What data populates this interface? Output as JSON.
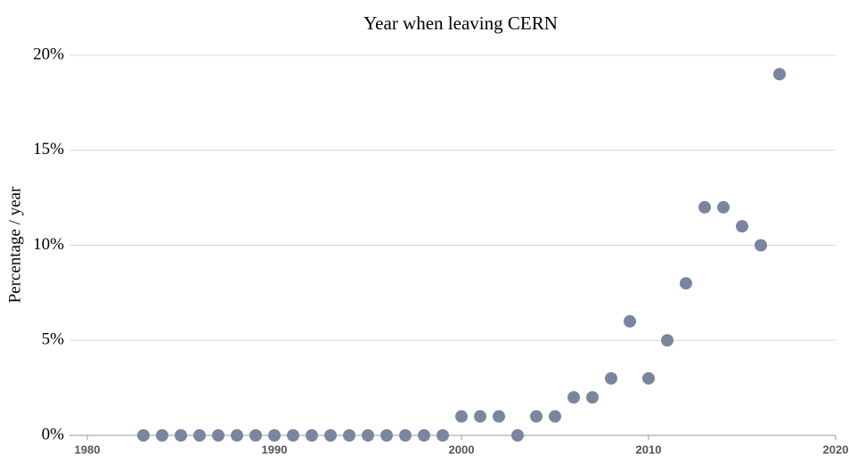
{
  "chart_data": {
    "type": "scatter",
    "title": "Year when leaving CERN",
    "ylabel": "Percentage / year",
    "x": [
      1983,
      1984,
      1985,
      1986,
      1987,
      1988,
      1989,
      1990,
      1991,
      1992,
      1993,
      1994,
      1995,
      1996,
      1997,
      1998,
      1999,
      2000,
      2001,
      2002,
      2003,
      2004,
      2005,
      2006,
      2007,
      2008,
      2009,
      2010,
      2011,
      2012,
      2013,
      2014,
      2015,
      2016,
      2017
    ],
    "values": [
      0,
      0,
      0,
      0,
      0,
      0,
      0,
      0,
      0,
      0,
      0,
      0,
      0,
      0,
      0,
      0,
      0,
      1,
      1,
      1,
      0,
      1,
      1,
      2,
      2,
      3,
      6,
      3,
      5,
      8,
      12,
      12,
      11,
      10,
      19
    ],
    "color": "#7a869e",
    "xlim": [
      1980,
      2020
    ],
    "xticks": [
      1980,
      1990,
      2000,
      2010,
      2020
    ],
    "ylim": [
      0,
      20
    ],
    "yticks": [
      {
        "value": 0,
        "label": "0%"
      },
      {
        "value": 5,
        "label": "5%"
      },
      {
        "value": 10,
        "label": "10%"
      },
      {
        "value": 15,
        "label": "15%"
      },
      {
        "value": 20,
        "label": "20%"
      }
    ],
    "grid": true
  }
}
